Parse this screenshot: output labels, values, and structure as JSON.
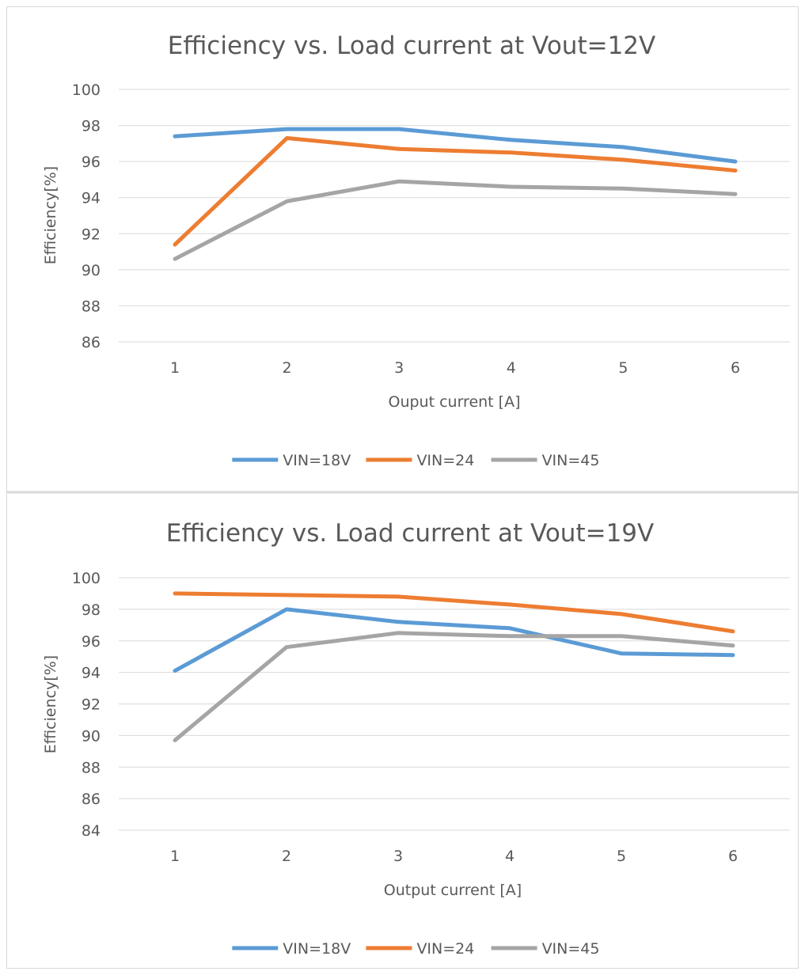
{
  "chart_data": [
    {
      "type": "line",
      "title": "Efficiency vs. Load current at Vout=12V",
      "xlabel": "Ouput current [A]",
      "ylabel": "Efficiency[%]",
      "categories": [
        "1",
        "2",
        "3",
        "4",
        "5",
        "6"
      ],
      "ylim": [
        86,
        100
      ],
      "ytick_step": 2,
      "yticks": [
        "86",
        "88",
        "90",
        "92",
        "94",
        "96",
        "98",
        "100"
      ],
      "grid": true,
      "legend": "bottom",
      "series": [
        {
          "name": "VIN=18V",
          "color": "#5b9bd5",
          "values": [
            97.4,
            97.8,
            97.8,
            97.2,
            96.8,
            96.0
          ]
        },
        {
          "name": "VIN=24",
          "color": "#ed7d31",
          "values": [
            91.4,
            97.3,
            96.7,
            96.5,
            96.1,
            95.5
          ]
        },
        {
          "name": "VIN=45",
          "color": "#a5a5a5",
          "values": [
            90.6,
            93.8,
            94.9,
            94.6,
            94.5,
            94.2
          ]
        }
      ]
    },
    {
      "type": "line",
      "title": "Efficiency vs. Load current at Vout=19V",
      "xlabel": "Output current [A]",
      "ylabel": "Efficiency[%]",
      "categories": [
        "1",
        "2",
        "3",
        "4",
        "5",
        "6"
      ],
      "ylim": [
        84,
        100
      ],
      "ytick_step": 2,
      "yticks": [
        "84",
        "86",
        "88",
        "90",
        "92",
        "94",
        "96",
        "98",
        "100"
      ],
      "grid": true,
      "legend": "bottom",
      "series": [
        {
          "name": "VIN=18V",
          "color": "#5b9bd5",
          "values": [
            94.1,
            98.0,
            97.2,
            96.8,
            95.2,
            95.1
          ]
        },
        {
          "name": "VIN=24",
          "color": "#ed7d31",
          "values": [
            99.0,
            98.9,
            98.8,
            98.3,
            97.7,
            96.6
          ]
        },
        {
          "name": "VIN=45",
          "color": "#a5a5a5",
          "values": [
            89.7,
            95.6,
            96.5,
            96.3,
            96.3,
            95.7
          ]
        }
      ]
    }
  ]
}
